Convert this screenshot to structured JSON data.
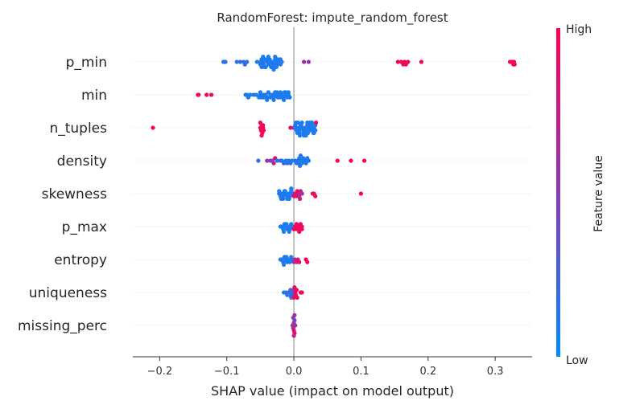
{
  "chart_data": {
    "type": "scatter",
    "title": "RandomForest: impute_random_forest",
    "xlabel": "SHAP value (impact on model output)",
    "xlim": [
      -0.24,
      0.355
    ],
    "xticks": [
      -0.2,
      -0.1,
      0.0,
      0.1,
      0.2,
      0.3
    ],
    "xtick_labels": [
      "−0.2",
      "−0.1",
      "0.0",
      "0.1",
      "0.2",
      "0.3"
    ],
    "grid": false,
    "colorbar": {
      "label": "Feature value",
      "high_label": "High",
      "low_label": "Low",
      "low_color": "#008bfb",
      "mid_color": "#8a3ab7",
      "high_color": "#ff0052"
    },
    "features": [
      {
        "name": "p_min",
        "points": [
          [
            -0.105,
            0.1
          ],
          [
            -0.102,
            0.2
          ],
          [
            -0.085,
            0.1
          ],
          [
            -0.08,
            0.2
          ],
          [
            -0.075,
            0.15
          ],
          [
            -0.073,
            0.2
          ],
          [
            -0.07,
            0.15
          ],
          [
            -0.055,
            0.1
          ],
          [
            -0.05,
            0.1
          ],
          [
            -0.05,
            0.15
          ],
          [
            -0.048,
            0.1
          ],
          [
            -0.046,
            0.1
          ],
          [
            -0.045,
            0.15
          ],
          [
            -0.043,
            0.1
          ],
          [
            -0.04,
            0.1
          ],
          [
            -0.038,
            0.1
          ],
          [
            -0.036,
            0.1
          ],
          [
            -0.034,
            0.1
          ],
          [
            -0.032,
            0.1
          ],
          [
            -0.03,
            0.15
          ],
          [
            -0.028,
            0.1
          ],
          [
            -0.026,
            0.1
          ],
          [
            -0.025,
            0.15
          ],
          [
            -0.022,
            0.1
          ],
          [
            -0.02,
            0.1
          ],
          [
            -0.018,
            0.1
          ],
          [
            -0.048,
            0.1
          ],
          [
            -0.044,
            0.1
          ],
          [
            -0.04,
            0.1
          ],
          [
            -0.036,
            0.1
          ],
          [
            -0.032,
            0.15
          ],
          [
            -0.028,
            0.1
          ],
          [
            -0.024,
            0.1
          ],
          [
            -0.02,
            0.1
          ],
          [
            -0.046,
            0.1
          ],
          [
            -0.042,
            0.1
          ],
          [
            -0.038,
            0.1
          ],
          [
            -0.034,
            0.1
          ],
          [
            -0.03,
            0.1
          ],
          [
            -0.026,
            0.1
          ],
          [
            0.015,
            0.6
          ],
          [
            0.022,
            0.55
          ],
          [
            0.155,
            0.95
          ],
          [
            0.16,
            0.95
          ],
          [
            0.163,
            0.95
          ],
          [
            0.165,
            0.95
          ],
          [
            0.167,
            0.95
          ],
          [
            0.17,
            0.95
          ],
          [
            0.19,
            0.95
          ],
          [
            0.322,
            0.95
          ],
          [
            0.325,
            0.95
          ],
          [
            0.327,
            0.95
          ],
          [
            0.328,
            0.95
          ],
          [
            0.329,
            0.95
          ]
        ]
      },
      {
        "name": "min",
        "points": [
          [
            -0.143,
            0.95
          ],
          [
            -0.142,
            0.95
          ],
          [
            -0.13,
            0.95
          ],
          [
            -0.123,
            0.95
          ],
          [
            -0.072,
            0.1
          ],
          [
            -0.07,
            0.1
          ],
          [
            -0.068,
            0.1
          ],
          [
            -0.065,
            0.1
          ],
          [
            -0.06,
            0.1
          ],
          [
            -0.056,
            0.1
          ],
          [
            -0.052,
            0.1
          ],
          [
            -0.05,
            0.1
          ],
          [
            -0.048,
            0.1
          ],
          [
            -0.045,
            0.1
          ],
          [
            -0.042,
            0.1
          ],
          [
            -0.04,
            0.1
          ],
          [
            -0.038,
            0.1
          ],
          [
            -0.035,
            0.1
          ],
          [
            -0.032,
            0.1
          ],
          [
            -0.03,
            0.1
          ],
          [
            -0.028,
            0.1
          ],
          [
            -0.026,
            0.1
          ],
          [
            -0.024,
            0.1
          ],
          [
            -0.022,
            0.1
          ],
          [
            -0.02,
            0.1
          ],
          [
            -0.018,
            0.1
          ],
          [
            -0.016,
            0.1
          ],
          [
            -0.014,
            0.1
          ],
          [
            -0.012,
            0.1
          ],
          [
            -0.01,
            0.1
          ],
          [
            -0.008,
            0.1
          ],
          [
            -0.006,
            0.1
          ],
          [
            -0.05,
            0.1
          ],
          [
            -0.045,
            0.1
          ],
          [
            -0.04,
            0.1
          ],
          [
            -0.035,
            0.1
          ],
          [
            -0.03,
            0.1
          ],
          [
            -0.025,
            0.1
          ],
          [
            -0.02,
            0.1
          ],
          [
            -0.015,
            0.1
          ],
          [
            -0.012,
            0.1
          ],
          [
            -0.008,
            0.1
          ]
        ]
      },
      {
        "name": "n_tuples",
        "points": [
          [
            -0.21,
            0.95
          ],
          [
            -0.05,
            0.95
          ],
          [
            -0.049,
            0.95
          ],
          [
            -0.048,
            0.95
          ],
          [
            -0.047,
            0.95
          ],
          [
            -0.046,
            0.95
          ],
          [
            -0.045,
            0.95
          ],
          [
            -0.05,
            0.95
          ],
          [
            -0.048,
            0.95
          ],
          [
            -0.046,
            0.95
          ],
          [
            -0.005,
            0.85
          ],
          [
            0.0,
            0.7
          ],
          [
            0.002,
            0.1
          ],
          [
            0.004,
            0.1
          ],
          [
            0.006,
            0.1
          ],
          [
            0.008,
            0.1
          ],
          [
            0.01,
            0.1
          ],
          [
            0.012,
            0.1
          ],
          [
            0.014,
            0.1
          ],
          [
            0.016,
            0.1
          ],
          [
            0.018,
            0.1
          ],
          [
            0.02,
            0.1
          ],
          [
            0.022,
            0.1
          ],
          [
            0.024,
            0.1
          ],
          [
            0.026,
            0.1
          ],
          [
            0.028,
            0.1
          ],
          [
            0.03,
            0.1
          ],
          [
            0.032,
            0.1
          ],
          [
            0.002,
            0.1
          ],
          [
            0.005,
            0.1
          ],
          [
            0.008,
            0.1
          ],
          [
            0.011,
            0.1
          ],
          [
            0.014,
            0.1
          ],
          [
            0.017,
            0.1
          ],
          [
            0.02,
            0.1
          ],
          [
            0.023,
            0.1
          ],
          [
            0.026,
            0.1
          ],
          [
            0.029,
            0.1
          ],
          [
            0.032,
            0.1
          ],
          [
            0.003,
            0.1
          ],
          [
            0.006,
            0.1
          ],
          [
            0.009,
            0.1
          ],
          [
            0.012,
            0.1
          ],
          [
            0.015,
            0.1
          ],
          [
            0.018,
            0.1
          ],
          [
            0.021,
            0.1
          ],
          [
            0.024,
            0.1
          ],
          [
            0.027,
            0.1
          ],
          [
            0.03,
            0.1
          ],
          [
            0.033,
            0.95
          ]
        ]
      },
      {
        "name": "density",
        "points": [
          [
            -0.053,
            0.2
          ],
          [
            -0.04,
            0.6
          ],
          [
            -0.035,
            0.5
          ],
          [
            -0.032,
            0.4
          ],
          [
            -0.03,
            0.7
          ],
          [
            -0.028,
            0.9
          ],
          [
            -0.025,
            0.1
          ],
          [
            -0.02,
            0.3
          ],
          [
            -0.018,
            0.1
          ],
          [
            -0.015,
            0.2
          ],
          [
            -0.012,
            0.1
          ],
          [
            -0.01,
            0.15
          ],
          [
            -0.008,
            0.1
          ],
          [
            -0.005,
            0.2
          ],
          [
            -0.003,
            0.1
          ],
          [
            0.002,
            0.1
          ],
          [
            0.004,
            0.1
          ],
          [
            0.006,
            0.15
          ],
          [
            0.007,
            0.1
          ],
          [
            0.008,
            0.1
          ],
          [
            0.009,
            0.1
          ],
          [
            0.01,
            0.1
          ],
          [
            0.011,
            0.1
          ],
          [
            0.012,
            0.1
          ],
          [
            0.014,
            0.15
          ],
          [
            0.016,
            0.1
          ],
          [
            0.018,
            0.1
          ],
          [
            0.02,
            0.1
          ],
          [
            0.022,
            0.1
          ],
          [
            0.065,
            0.95
          ],
          [
            0.085,
            0.95
          ],
          [
            0.105,
            0.95
          ]
        ]
      },
      {
        "name": "skewness",
        "points": [
          [
            -0.022,
            0.1
          ],
          [
            -0.02,
            0.1
          ],
          [
            -0.018,
            0.1
          ],
          [
            -0.016,
            0.1
          ],
          [
            -0.014,
            0.15
          ],
          [
            -0.012,
            0.1
          ],
          [
            -0.01,
            0.1
          ],
          [
            -0.008,
            0.1
          ],
          [
            -0.006,
            0.1
          ],
          [
            -0.004,
            0.1
          ],
          [
            -0.002,
            0.1
          ],
          [
            -0.022,
            0.1
          ],
          [
            -0.019,
            0.1
          ],
          [
            -0.016,
            0.15
          ],
          [
            -0.013,
            0.1
          ],
          [
            -0.01,
            0.1
          ],
          [
            -0.007,
            0.1
          ],
          [
            -0.004,
            0.1
          ],
          [
            0.0,
            0.95
          ],
          [
            0.002,
            0.9
          ],
          [
            0.004,
            0.85
          ],
          [
            0.006,
            0.75
          ],
          [
            0.008,
            0.7
          ],
          [
            0.01,
            0.65
          ],
          [
            0.012,
            0.6
          ],
          [
            0.005,
            0.95
          ],
          [
            0.009,
            0.8
          ],
          [
            0.028,
            0.95
          ],
          [
            0.03,
            0.9
          ],
          [
            0.032,
            0.95
          ],
          [
            0.1,
            0.95
          ]
        ]
      },
      {
        "name": "p_max",
        "points": [
          [
            -0.02,
            0.1
          ],
          [
            -0.018,
            0.1
          ],
          [
            -0.016,
            0.1
          ],
          [
            -0.014,
            0.1
          ],
          [
            -0.012,
            0.1
          ],
          [
            -0.01,
            0.1
          ],
          [
            -0.008,
            0.1
          ],
          [
            -0.006,
            0.15
          ],
          [
            -0.004,
            0.1
          ],
          [
            -0.002,
            0.1
          ],
          [
            -0.015,
            0.1
          ],
          [
            -0.011,
            0.1
          ],
          [
            -0.007,
            0.1
          ],
          [
            0.0,
            0.95
          ],
          [
            0.002,
            0.95
          ],
          [
            0.004,
            0.9
          ],
          [
            0.006,
            0.95
          ],
          [
            0.008,
            0.95
          ],
          [
            0.01,
            0.9
          ],
          [
            0.012,
            0.95
          ],
          [
            0.004,
            0.95
          ],
          [
            0.008,
            0.9
          ],
          [
            0.012,
            0.95
          ]
        ]
      },
      {
        "name": "entropy",
        "points": [
          [
            -0.02,
            0.1
          ],
          [
            -0.018,
            0.1
          ],
          [
            -0.016,
            0.1
          ],
          [
            -0.014,
            0.1
          ],
          [
            -0.012,
            0.1
          ],
          [
            -0.01,
            0.15
          ],
          [
            -0.008,
            0.1
          ],
          [
            -0.006,
            0.1
          ],
          [
            -0.004,
            0.1
          ],
          [
            -0.002,
            0.2
          ],
          [
            -0.015,
            0.1
          ],
          [
            -0.011,
            0.1
          ],
          [
            0.0,
            0.6
          ],
          [
            0.002,
            0.7
          ],
          [
            0.004,
            0.75
          ],
          [
            0.006,
            0.8
          ],
          [
            0.008,
            0.85
          ],
          [
            0.018,
            0.95
          ],
          [
            0.02,
            0.95
          ]
        ]
      },
      {
        "name": "uniqueness",
        "points": [
          [
            -0.015,
            0.1
          ],
          [
            -0.012,
            0.15
          ],
          [
            -0.01,
            0.1
          ],
          [
            -0.008,
            0.2
          ],
          [
            -0.006,
            0.1
          ],
          [
            -0.005,
            0.3
          ],
          [
            -0.004,
            0.2
          ],
          [
            -0.003,
            0.1
          ],
          [
            -0.002,
            0.3
          ],
          [
            -0.001,
            0.4
          ],
          [
            0.0,
            0.95
          ],
          [
            0.001,
            0.9
          ],
          [
            0.002,
            0.95
          ],
          [
            0.003,
            0.85
          ],
          [
            0.004,
            0.95
          ],
          [
            0.005,
            0.9
          ],
          [
            0.01,
            0.95
          ],
          [
            0.012,
            0.95
          ]
        ]
      },
      {
        "name": "missing_perc",
        "points": [
          [
            -0.002,
            0.5
          ],
          [
            -0.001,
            0.7
          ],
          [
            0.0,
            0.6
          ],
          [
            0.0,
            0.8
          ],
          [
            0.001,
            0.4
          ],
          [
            0.001,
            0.9
          ],
          [
            0.002,
            0.6
          ],
          [
            -0.001,
            0.5
          ],
          [
            0.0,
            0.7
          ],
          [
            0.001,
            0.6
          ]
        ]
      }
    ]
  }
}
